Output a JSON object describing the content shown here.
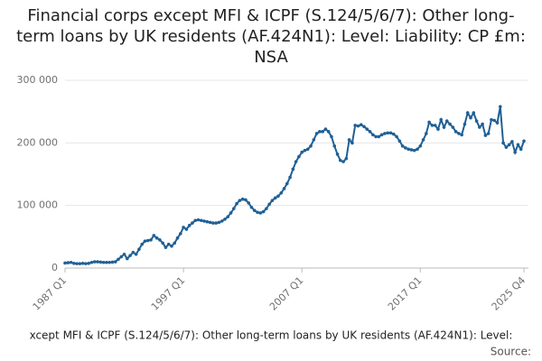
{
  "chart_data": {
    "type": "line",
    "title": "Financial corps except MFI & ICPF (S.124/5/6/7): Other long-term loans by UK residents (AF.424N1): Level: Liability: CP £m: NSA",
    "footer": "xcept MFI & ICPF (S.124/5/6/7): Other long-term loans by UK residents (AF.424N1): Level:",
    "source": "Source:",
    "categories": [
      "1987 Q1",
      null,
      null,
      null,
      null,
      null,
      null,
      null,
      null,
      null,
      null,
      null,
      null,
      null,
      null,
      null,
      null,
      null,
      null,
      null,
      null,
      null,
      null,
      null,
      null,
      null,
      null,
      null,
      null,
      null,
      null,
      null,
      null,
      null,
      null,
      null,
      null,
      null,
      null,
      null,
      "1997 Q1",
      null,
      null,
      null,
      null,
      null,
      null,
      null,
      null,
      null,
      null,
      null,
      null,
      null,
      null,
      null,
      null,
      null,
      null,
      null,
      null,
      null,
      null,
      null,
      null,
      null,
      null,
      null,
      null,
      null,
      null,
      null,
      null,
      null,
      null,
      null,
      null,
      null,
      null,
      null,
      "2007 Q1",
      null,
      null,
      null,
      null,
      null,
      null,
      null,
      null,
      null,
      null,
      null,
      null,
      null,
      null,
      null,
      null,
      null,
      null,
      null,
      null,
      null,
      null,
      null,
      null,
      null,
      null,
      null,
      null,
      null,
      null,
      null,
      null,
      null,
      null,
      null,
      null,
      null,
      null,
      null,
      "2017 Q1",
      null,
      null,
      null,
      null,
      null,
      null,
      null,
      null,
      null,
      null,
      null,
      null,
      null,
      null,
      null,
      null,
      null,
      null,
      null,
      null,
      null,
      null,
      null,
      null,
      null,
      null,
      null,
      null,
      null,
      null,
      null,
      null,
      null,
      null,
      "2025 Q4"
    ],
    "series": [
      {
        "color": "#206095",
        "values": [
          8000,
          8500,
          9000,
          7500,
          7000,
          7000,
          7500,
          7000,
          7500,
          9000,
          10000,
          10000,
          9500,
          9000,
          9000,
          9000,
          9500,
          10000,
          14000,
          18000,
          22000,
          15000,
          20000,
          25000,
          22000,
          30000,
          38000,
          43000,
          44000,
          45000,
          52000,
          48000,
          45000,
          40000,
          33000,
          38000,
          35000,
          40000,
          48000,
          55000,
          65000,
          62000,
          68000,
          72000,
          76000,
          77000,
          76000,
          75000,
          74000,
          73000,
          72000,
          72000,
          73000,
          75000,
          78000,
          82000,
          88000,
          95000,
          103000,
          108000,
          110000,
          109000,
          104000,
          97000,
          92000,
          89000,
          88000,
          90000,
          95000,
          102000,
          108000,
          112000,
          115000,
          120000,
          127000,
          135000,
          145000,
          158000,
          170000,
          178000,
          185000,
          188000,
          190000,
          195000,
          205000,
          215000,
          218000,
          218000,
          222000,
          218000,
          210000,
          195000,
          182000,
          172000,
          170000,
          175000,
          205000,
          200000,
          228000,
          227000,
          229000,
          226000,
          222000,
          218000,
          213000,
          210000,
          210000,
          213000,
          215000,
          216000,
          216000,
          214000,
          210000,
          203000,
          195000,
          192000,
          190000,
          189000,
          188000,
          190000,
          195000,
          205000,
          215000,
          233000,
          228000,
          228000,
          222000,
          237000,
          225000,
          235000,
          230000,
          225000,
          218000,
          215000,
          213000,
          230000,
          248000,
          240000,
          248000,
          235000,
          225000,
          230000,
          212000,
          215000,
          237000,
          236000,
          232000,
          258000,
          200000,
          193000,
          197000,
          202000,
          185000,
          197000,
          190000,
          203000
        ]
      }
    ],
    "ylim": [
      0,
      300000
    ],
    "yticks": [
      0,
      {
        "value": 100000,
        "label": "100 000"
      },
      {
        "value": 200000,
        "label": "200 000"
      },
      {
        "value": 300000,
        "label": "300 000"
      }
    ],
    "grid": true
  }
}
